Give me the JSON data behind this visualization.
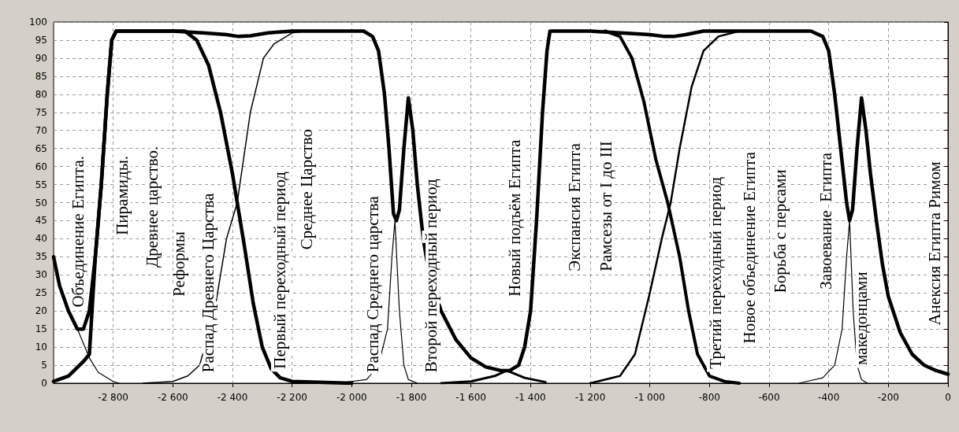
{
  "chart_data": {
    "type": "line",
    "xlim": [
      -3000,
      0
    ],
    "ylim": [
      0,
      100
    ],
    "xticks": [
      {
        "value": -2800,
        "label": "-2 800"
      },
      {
        "value": -2600,
        "label": "-2 600"
      },
      {
        "value": -2400,
        "label": "-2 400"
      },
      {
        "value": -2200,
        "label": "-2 200"
      },
      {
        "value": -2000,
        "label": "-2 000"
      },
      {
        "value": -1800,
        "label": "-1 800"
      },
      {
        "value": -1600,
        "label": "-1 600"
      },
      {
        "value": -1400,
        "label": "-1 400"
      },
      {
        "value": -1200,
        "label": "-1 200"
      },
      {
        "value": -1000,
        "label": "-1 000"
      },
      -800,
      -600,
      -400,
      -200,
      0
    ],
    "yticks": [
      0,
      5,
      10,
      15,
      20,
      25,
      30,
      35,
      40,
      45,
      50,
      55,
      60,
      65,
      70,
      75,
      80,
      85,
      90,
      95,
      100
    ],
    "grid": true,
    "marker": "none",
    "line_style": "solid",
    "series": [
      {
        "color": "#000000",
        "x": [
          -3000,
          -2980,
          -2950,
          -2920,
          -2900,
          -2880,
          -2860,
          -2840,
          -2820,
          -2805,
          -2790,
          -2600,
          -2500,
          -2420,
          -2380,
          -2340,
          -2280,
          -2200,
          -1960,
          -1930,
          -1910,
          -1890,
          -1875,
          -1860,
          -1850,
          -1840,
          -1825,
          -1810,
          -1795,
          -1780,
          -1760,
          -1740,
          -1700,
          -1650,
          -1600,
          -1550,
          -1500,
          -1470,
          -1440,
          -1420,
          -1400,
          -1380,
          -1360,
          -1345,
          -1335,
          -1200,
          -1100,
          -1000,
          -950,
          -920,
          -880,
          -820,
          -460,
          -420,
          -400,
          -380,
          -360,
          -340,
          -330,
          -320,
          -305,
          -290,
          -275,
          -260,
          -240,
          -220,
          -200,
          -160,
          -120,
          -80,
          -40,
          0
        ],
        "values": [
          35,
          27,
          20,
          15,
          15,
          20,
          35,
          55,
          80,
          95,
          97.5,
          97.5,
          97,
          96.5,
          96,
          96.2,
          97,
          97.5,
          97.5,
          96,
          92,
          80,
          65,
          47,
          45,
          48,
          65,
          79,
          70,
          55,
          40,
          30,
          20,
          12,
          7,
          4.5,
          3.5,
          3.5,
          5,
          10,
          20,
          45,
          75,
          92,
          97.5,
          97.5,
          97,
          96.5,
          96,
          96,
          96.5,
          97.5,
          97.5,
          96,
          92,
          80,
          65,
          50,
          45,
          48,
          65,
          79,
          70,
          58,
          45,
          33,
          24,
          14,
          8,
          5,
          3.5,
          2.5
        ]
      },
      {
        "color": "#000000",
        "x": [
          -3000,
          -2950,
          -2900,
          -2880,
          -2860,
          -2840,
          -2820,
          -2805,
          -2790,
          -2560,
          -2520,
          -2480,
          -2440,
          -2400,
          -2380,
          -2360,
          -2330,
          -2300,
          -2270,
          -2240,
          -2200,
          -2000
        ],
        "values": [
          0.5,
          2,
          6,
          8,
          35,
          55,
          80,
          95,
          97.5,
          97.5,
          95,
          88,
          75,
          58,
          48,
          38,
          22,
          10,
          4,
          1.5,
          0.5,
          0
        ]
      },
      {
        "color": "#000000",
        "x": [
          -2930,
          -2900,
          -2880,
          -2850,
          -2800,
          -2780
        ],
        "values": [
          17,
          11,
          7,
          3,
          0.5,
          0
        ]
      },
      {
        "color": "#000000",
        "x": [
          -2700,
          -2600,
          -2550,
          -2510,
          -2460,
          -2420,
          -2384,
          -2340,
          -2296,
          -2260,
          -2200,
          -2150
        ],
        "values": [
          0,
          0.5,
          2,
          5,
          20,
          40,
          50,
          75,
          90,
          94,
          97,
          97.5
        ]
      },
      {
        "color": "#000000",
        "x": [
          -2050,
          -1950,
          -1910,
          -1880,
          -1865,
          -1855,
          -1840,
          -1825,
          -1810,
          -1780
        ],
        "values": [
          0,
          1,
          5,
          15,
          35,
          45,
          20,
          5,
          1,
          0
        ]
      },
      {
        "color": "#000000",
        "x": [
          -1700,
          -1600,
          -1520,
          -1480,
          -1420,
          -1350
        ],
        "values": [
          0,
          0.5,
          2,
          3.5,
          1.5,
          0.3
        ]
      },
      {
        "color": "#000000",
        "x": [
          -1150,
          -1100,
          -1060,
          -1020,
          -980,
          -940,
          -900,
          -870,
          -840,
          -800,
          -750,
          -700
        ],
        "values": [
          97.5,
          96,
          90,
          78,
          62,
          50,
          35,
          20,
          8,
          2,
          0.5,
          0
        ]
      },
      {
        "color": "#000000",
        "x": [
          -1200,
          -1100,
          -1050,
          -1000,
          -960,
          -930,
          -900,
          -860,
          -820,
          -770,
          -700
        ],
        "values": [
          0,
          2,
          8,
          25,
          40,
          50,
          65,
          82,
          92,
          96,
          97.5
        ]
      },
      {
        "color": "#000000",
        "x": [
          -500,
          -420,
          -380,
          -355,
          -340,
          -330,
          -318,
          -305,
          -290,
          -270
        ],
        "values": [
          0,
          1.5,
          5,
          15,
          35,
          45,
          20,
          5,
          1,
          0
        ]
      }
    ],
    "annotations": [
      "Объединение Египта.",
      "Пирамиды.",
      "Древнее царство.",
      "Реформы",
      "Распад Древнего Царства",
      "Первый переходный период",
      "Среднее Царство",
      "Распад Среднего царства",
      "Второй переходный период",
      "Новый подъём Египта",
      "Экспансия Египта",
      "Рамсезы от I до III",
      "Третий переходный период",
      "Новое объединение Египта",
      "Борьба с персами",
      "Завоевание  Египта",
      "македонцами",
      "Анексия Египта Римом"
    ]
  }
}
